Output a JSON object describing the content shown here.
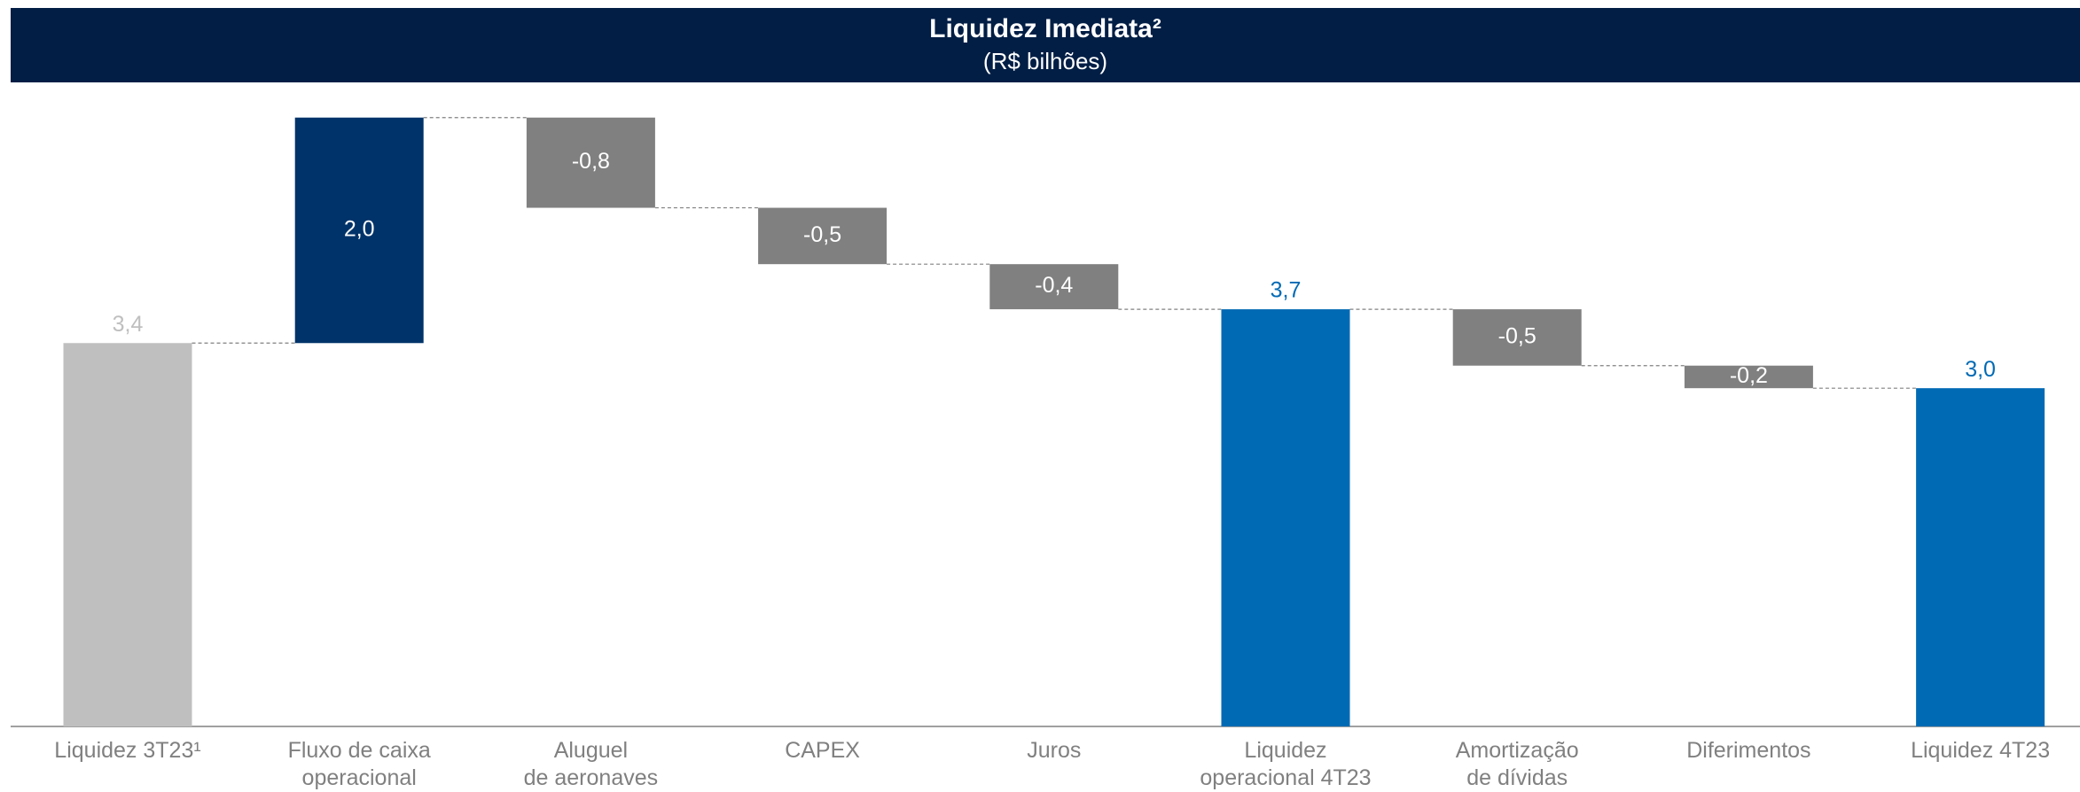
{
  "chart_data": {
    "type": "waterfall",
    "title": "Liquidez Imediata²",
    "subtitle": "(R$ bilhões)",
    "categories": [
      "Liquidez 3T23¹",
      "Fluxo de caixa\noperacional",
      "Aluguel\nde aeronaves",
      "CAPEX",
      "Juros",
      "Liquidez\noperacional 4T23",
      "Amortização\nde dívidas",
      "Diferimentos",
      "Liquidez 4T23"
    ],
    "measure": [
      "absolute",
      "relative",
      "relative",
      "relative",
      "relative",
      "total",
      "relative",
      "relative",
      "total"
    ],
    "values": [
      3.4,
      2.0,
      -0.8,
      -0.5,
      -0.4,
      3.7,
      -0.5,
      -0.2,
      3.0
    ],
    "value_labels": [
      "3,4",
      "2,0",
      "-0,8",
      "-0,5",
      "-0,4",
      "3,7",
      "-0,5",
      "-0,2",
      "3,0"
    ],
    "colors": [
      "#bfbfbf",
      "#003369",
      "#808080",
      "#808080",
      "#808080",
      "#006ab4",
      "#808080",
      "#808080",
      "#006ab4"
    ],
    "ylim": [
      0,
      5.5
    ]
  }
}
